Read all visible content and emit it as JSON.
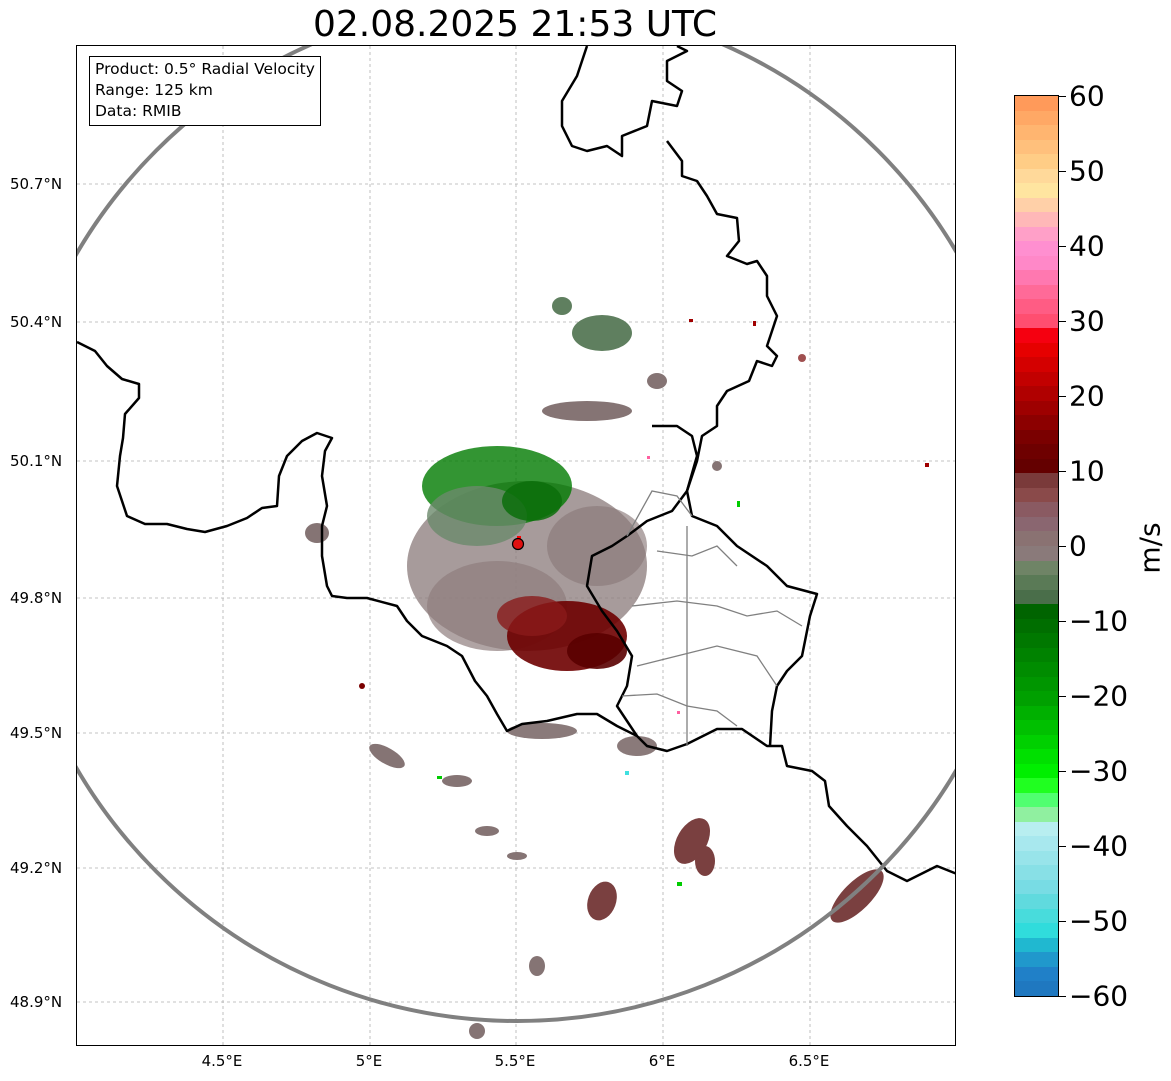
{
  "title": "02.08.2025 21:53 UTC",
  "info": {
    "product": "Product: 0.5° Radial Velocity",
    "range": "Range: 125 km",
    "data": "Data: RMIB"
  },
  "latitude_ticks": [
    "50.7°N",
    "50.4°N",
    "50.1°N",
    "49.8°N",
    "49.5°N",
    "49.2°N",
    "48.9°N"
  ],
  "longitude_ticks": [
    "4.5°E",
    "5°E",
    "5.5°E",
    "6°E",
    "6.5°E"
  ],
  "colorbar": {
    "unit": "m/s",
    "tick_labels": [
      "60",
      "50",
      "40",
      "30",
      "20",
      "10",
      "0",
      "−10",
      "−20",
      "−30",
      "−40",
      "−50",
      "−60"
    ]
  },
  "radar_site": {
    "lon": 5.505,
    "lat": 49.914
  },
  "colors": {
    "approaching_green": "#007a00",
    "receding_red": "#7a0000",
    "near_zero_gray": "#8a7a7a",
    "range_ring": "#808080"
  }
}
